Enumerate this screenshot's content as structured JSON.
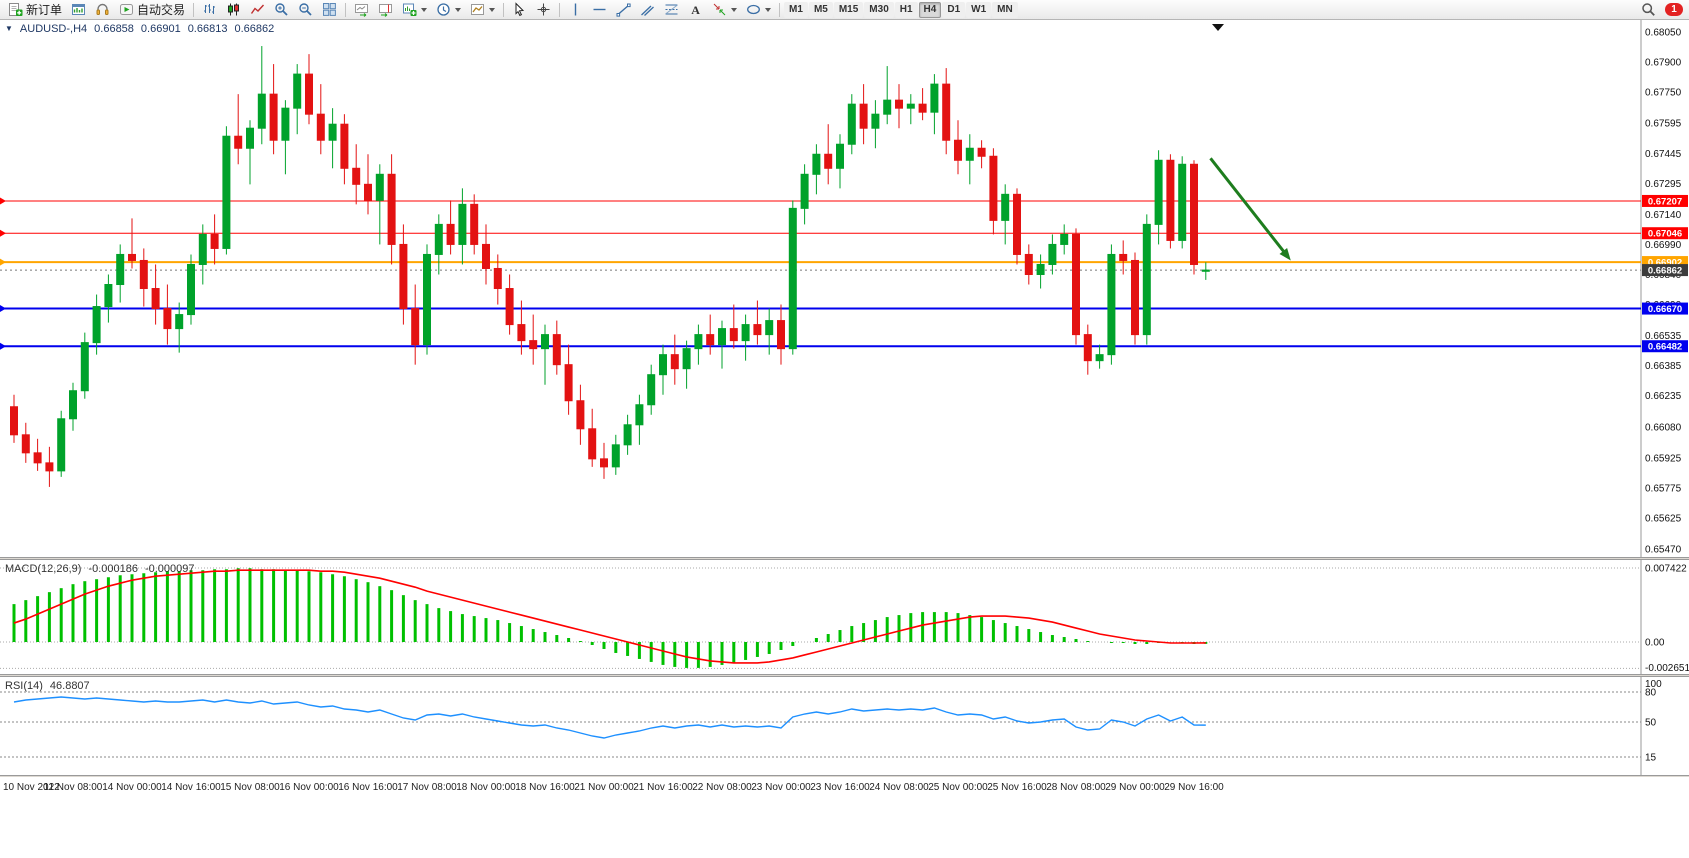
{
  "toolbar": {
    "new_order_label": "新订单",
    "auto_trading_label": "自动交易",
    "timeframes": [
      "M1",
      "M5",
      "M15",
      "M30",
      "H1",
      "H4",
      "D1",
      "W1",
      "MN"
    ],
    "active_timeframe": "H4",
    "notification_count": "1"
  },
  "chart_header": {
    "expand_icon": "▼",
    "symbol": "AUDUSD-,H4",
    "open": "0.66858",
    "high": "0.66901",
    "low": "0.66813",
    "close": "0.66862"
  },
  "macd_header": {
    "label": "MACD(12,26,9)",
    "macd_value": "-0.000186",
    "signal_value": "-0.000097"
  },
  "rsi_header": {
    "label": "RSI(14)",
    "value": "46.8807"
  },
  "chart_data": {
    "type": "candlestick",
    "symbol": "AUDUSD",
    "timeframe": "H4",
    "price_axis": {
      "min": 0.6547,
      "max": 0.6805,
      "ticks": [
        "0.68050",
        "0.67900",
        "0.67750",
        "0.67595",
        "0.67445",
        "0.67295",
        "0.67140",
        "0.66990",
        "0.66840",
        "0.66690",
        "0.66535",
        "0.66385",
        "0.66235",
        "0.66080",
        "0.65925",
        "0.65775",
        "0.65625",
        "0.65470"
      ]
    },
    "time_labels": [
      "10 Nov 2022",
      "11 Nov 08:00",
      "14 Nov 00:00",
      "14 Nov 16:00",
      "15 Nov 08:00",
      "16 Nov 00:00",
      "16 Nov 16:00",
      "17 Nov 08:00",
      "18 Nov 00:00",
      "18 Nov 16:00",
      "21 Nov 00:00",
      "21 Nov 16:00",
      "22 Nov 08:00",
      "23 Nov 00:00",
      "23 Nov 16:00",
      "24 Nov 08:00",
      "25 Nov 00:00",
      "25 Nov 16:00",
      "28 Nov 08:00",
      "29 Nov 00:00",
      "29 Nov 16:00"
    ],
    "colors": {
      "up": "#00a22b",
      "down": "#e31212",
      "macd_hist": "#00c000",
      "macd_signal": "#ff0000",
      "rsi": "#1e90ff",
      "current_line": "#777777"
    },
    "hlines": [
      {
        "price": 0.67207,
        "label": "0.67207",
        "color": "#ff0000",
        "width": 1
      },
      {
        "price": 0.67046,
        "label": "0.67046",
        "color": "#ff0000",
        "width": 1
      },
      {
        "price": 0.66902,
        "label": "0.66902",
        "color": "#ffa500",
        "width": 2
      },
      {
        "price": 0.6667,
        "label": "0.66670",
        "color": "#0000ee",
        "width": 2
      },
      {
        "price": 0.66482,
        "label": "0.66482",
        "color": "#0000ee",
        "width": 2
      }
    ],
    "current_price": {
      "price": 0.66862,
      "label": "0.66862",
      "badge_color": "#3c3c3c"
    },
    "arrow": {
      "from_bar": 101.4,
      "from_price": 0.6742,
      "to_bar": 108.2,
      "to_price": 0.6691,
      "color": "#1e7d1e"
    },
    "candles": [
      [
        0.6618,
        0.6624,
        0.66,
        0.6604
      ],
      [
        0.6604,
        0.661,
        0.659,
        0.6595
      ],
      [
        0.6595,
        0.6602,
        0.6586,
        0.659
      ],
      [
        0.659,
        0.6598,
        0.6578,
        0.6586
      ],
      [
        0.6586,
        0.6616,
        0.6583,
        0.6612
      ],
      [
        0.6612,
        0.663,
        0.6606,
        0.6626
      ],
      [
        0.6626,
        0.6655,
        0.6622,
        0.665
      ],
      [
        0.665,
        0.6674,
        0.6644,
        0.6668
      ],
      [
        0.6668,
        0.6684,
        0.666,
        0.6679
      ],
      [
        0.6679,
        0.6699,
        0.667,
        0.6694
      ],
      [
        0.6694,
        0.6712,
        0.6687,
        0.6691
      ],
      [
        0.6691,
        0.6697,
        0.6668,
        0.6677
      ],
      [
        0.6677,
        0.6689,
        0.6659,
        0.6667
      ],
      [
        0.6667,
        0.6679,
        0.6649,
        0.6657
      ],
      [
        0.6657,
        0.667,
        0.6645,
        0.6664
      ],
      [
        0.6664,
        0.6694,
        0.6659,
        0.6689
      ],
      [
        0.6689,
        0.6709,
        0.6679,
        0.6704
      ],
      [
        0.6704,
        0.6714,
        0.6689,
        0.6697
      ],
      [
        0.6697,
        0.6758,
        0.6694,
        0.6753
      ],
      [
        0.6753,
        0.6774,
        0.6739,
        0.6747
      ],
      [
        0.6747,
        0.6761,
        0.6729,
        0.6757
      ],
      [
        0.6757,
        0.6798,
        0.6749,
        0.6774
      ],
      [
        0.6774,
        0.6789,
        0.6744,
        0.6751
      ],
      [
        0.6751,
        0.6771,
        0.6734,
        0.6767
      ],
      [
        0.6767,
        0.6789,
        0.6754,
        0.6784
      ],
      [
        0.6784,
        0.6794,
        0.6759,
        0.6764
      ],
      [
        0.6764,
        0.6779,
        0.6744,
        0.6751
      ],
      [
        0.6751,
        0.6767,
        0.6737,
        0.6759
      ],
      [
        0.6759,
        0.6764,
        0.6729,
        0.6737
      ],
      [
        0.6737,
        0.6749,
        0.6719,
        0.6729
      ],
      [
        0.6729,
        0.6744,
        0.6714,
        0.6721
      ],
      [
        0.6721,
        0.6739,
        0.6699,
        0.6734
      ],
      [
        0.6734,
        0.6744,
        0.6689,
        0.6699
      ],
      [
        0.6699,
        0.6709,
        0.6659,
        0.6667
      ],
      [
        0.6667,
        0.6679,
        0.6639,
        0.6649
      ],
      [
        0.6649,
        0.6699,
        0.6644,
        0.6694
      ],
      [
        0.6694,
        0.6714,
        0.6684,
        0.6709
      ],
      [
        0.6709,
        0.6721,
        0.6694,
        0.6699
      ],
      [
        0.6699,
        0.6727,
        0.6689,
        0.6719
      ],
      [
        0.6719,
        0.6724,
        0.6694,
        0.6699
      ],
      [
        0.6699,
        0.6709,
        0.6679,
        0.6687
      ],
      [
        0.6687,
        0.6694,
        0.6669,
        0.6677
      ],
      [
        0.6677,
        0.6684,
        0.6654,
        0.6659
      ],
      [
        0.6659,
        0.6671,
        0.6644,
        0.6651
      ],
      [
        0.6651,
        0.6664,
        0.6639,
        0.6647
      ],
      [
        0.6647,
        0.6659,
        0.6629,
        0.6654
      ],
      [
        0.6654,
        0.6661,
        0.6634,
        0.6639
      ],
      [
        0.6639,
        0.6649,
        0.6614,
        0.6621
      ],
      [
        0.6621,
        0.6629,
        0.6599,
        0.6607
      ],
      [
        0.6607,
        0.6617,
        0.6588,
        0.6592
      ],
      [
        0.6592,
        0.66,
        0.6582,
        0.6588
      ],
      [
        0.6588,
        0.6604,
        0.6584,
        0.6599
      ],
      [
        0.6599,
        0.6614,
        0.6594,
        0.6609
      ],
      [
        0.6609,
        0.6624,
        0.6599,
        0.6619
      ],
      [
        0.6619,
        0.6639,
        0.6614,
        0.6634
      ],
      [
        0.6634,
        0.6649,
        0.6624,
        0.6644
      ],
      [
        0.6644,
        0.6654,
        0.6629,
        0.6637
      ],
      [
        0.6637,
        0.6651,
        0.6627,
        0.6647
      ],
      [
        0.6647,
        0.6659,
        0.6639,
        0.6654
      ],
      [
        0.6654,
        0.6664,
        0.6644,
        0.6649
      ],
      [
        0.6649,
        0.6661,
        0.6637,
        0.6657
      ],
      [
        0.6657,
        0.6669,
        0.6647,
        0.6651
      ],
      [
        0.6651,
        0.6664,
        0.6641,
        0.6659
      ],
      [
        0.6659,
        0.6671,
        0.6649,
        0.6654
      ],
      [
        0.6654,
        0.6667,
        0.6644,
        0.6661
      ],
      [
        0.6661,
        0.6669,
        0.6639,
        0.6647
      ],
      [
        0.6647,
        0.6721,
        0.6644,
        0.6717
      ],
      [
        0.6717,
        0.6739,
        0.6709,
        0.6734
      ],
      [
        0.6734,
        0.6749,
        0.6724,
        0.6744
      ],
      [
        0.6744,
        0.6759,
        0.6729,
        0.6737
      ],
      [
        0.6737,
        0.6754,
        0.6727,
        0.6749
      ],
      [
        0.6749,
        0.6774,
        0.6744,
        0.6769
      ],
      [
        0.6769,
        0.6779,
        0.6749,
        0.6757
      ],
      [
        0.6757,
        0.6771,
        0.6747,
        0.6764
      ],
      [
        0.6764,
        0.6788,
        0.6759,
        0.6771
      ],
      [
        0.6771,
        0.6779,
        0.6757,
        0.6767
      ],
      [
        0.6767,
        0.6774,
        0.6759,
        0.6769
      ],
      [
        0.6769,
        0.6777,
        0.6761,
        0.6765
      ],
      [
        0.6765,
        0.6784,
        0.6754,
        0.6779
      ],
      [
        0.6779,
        0.6787,
        0.6744,
        0.6751
      ],
      [
        0.6751,
        0.6761,
        0.6734,
        0.6741
      ],
      [
        0.6741,
        0.6754,
        0.6729,
        0.6747
      ],
      [
        0.6747,
        0.6751,
        0.6737,
        0.6743
      ],
      [
        0.6743,
        0.6747,
        0.6704,
        0.6711
      ],
      [
        0.6711,
        0.6729,
        0.6699,
        0.6724
      ],
      [
        0.6724,
        0.6727,
        0.6689,
        0.6694
      ],
      [
        0.6694,
        0.6699,
        0.6679,
        0.6684
      ],
      [
        0.6684,
        0.6694,
        0.6677,
        0.6689
      ],
      [
        0.6689,
        0.6704,
        0.6684,
        0.6699
      ],
      [
        0.6699,
        0.6709,
        0.6694,
        0.6704
      ],
      [
        0.6704,
        0.6707,
        0.6649,
        0.6654
      ],
      [
        0.6654,
        0.6659,
        0.6634,
        0.6641
      ],
      [
        0.6641,
        0.6649,
        0.6637,
        0.6644
      ],
      [
        0.6644,
        0.6699,
        0.6639,
        0.6694
      ],
      [
        0.6694,
        0.6701,
        0.6684,
        0.6691
      ],
      [
        0.6691,
        0.6695,
        0.6649,
        0.6654
      ],
      [
        0.6654,
        0.6714,
        0.6649,
        0.6709
      ],
      [
        0.6709,
        0.6746,
        0.6699,
        0.6741
      ],
      [
        0.6741,
        0.6744,
        0.6697,
        0.6701
      ],
      [
        0.6701,
        0.6743,
        0.6697,
        0.6739
      ],
      [
        0.6739,
        0.6741,
        0.6684,
        0.6689
      ],
      [
        0.66858,
        0.66901,
        0.66813,
        0.66862
      ]
    ],
    "macd": {
      "unit": 0.0001,
      "ticks": [
        "0.007422",
        "0.00",
        "-0.002651"
      ],
      "tick_values": [
        0.007422,
        0,
        -0.002651
      ],
      "histogram": [
        38,
        42,
        46,
        50,
        54,
        58,
        61,
        63,
        65,
        67,
        68,
        69,
        70,
        71,
        71,
        72,
        72,
        73,
        73,
        74,
        74,
        73,
        73,
        72,
        72,
        71,
        70,
        68,
        66,
        63,
        60,
        56,
        52,
        47,
        42,
        38,
        34,
        31,
        28,
        26,
        24,
        22,
        19,
        16,
        13,
        10,
        7,
        4,
        1,
        -3,
        -7,
        -11,
        -14,
        -17,
        -20,
        -23,
        -25,
        -26,
        -26,
        -25,
        -23,
        -21,
        -18,
        -15,
        -12,
        -8,
        -4,
        0,
        4,
        8,
        12,
        16,
        19,
        22,
        25,
        27,
        29,
        30,
        30,
        30,
        29,
        27,
        25,
        22,
        19,
        16,
        13,
        10,
        7,
        5,
        3,
        1,
        0,
        -1,
        -1,
        -2,
        -2,
        -1,
        0,
        -1,
        -2,
        -1.86
      ],
      "signal": [
        19,
        23,
        28,
        33,
        38,
        43,
        48,
        52,
        56,
        59,
        62,
        64,
        66,
        67,
        68,
        69,
        70,
        71,
        71,
        72,
        72,
        72,
        72,
        72,
        72,
        72,
        71,
        71,
        70,
        68,
        66,
        64,
        61,
        58,
        55,
        51,
        48,
        45,
        42,
        39,
        36,
        33,
        30,
        27,
        24,
        21,
        18,
        15,
        12,
        9,
        6,
        3,
        0,
        -3,
        -6,
        -9,
        -12,
        -15,
        -17,
        -19,
        -20,
        -21,
        -21,
        -21,
        -20,
        -18,
        -16,
        -13,
        -10,
        -7,
        -4,
        -1,
        2,
        5,
        8,
        11,
        14,
        17,
        19,
        21,
        23,
        25,
        26,
        26,
        26,
        25,
        24,
        22,
        20,
        17,
        14,
        11,
        8,
        6,
        4,
        2,
        1,
        0,
        -1,
        -1,
        -1,
        -0.97
      ]
    },
    "rsi": {
      "ticks": [
        "100",
        "80",
        "50",
        "15"
      ],
      "levels": [
        80,
        50,
        15
      ],
      "values": [
        70,
        72,
        73,
        74,
        75,
        74,
        73,
        74,
        73,
        72,
        71,
        70,
        71,
        70,
        70,
        71,
        72,
        70,
        72,
        70,
        69,
        71,
        68,
        69,
        70,
        67,
        65,
        66,
        63,
        62,
        60,
        62,
        58,
        54,
        52,
        57,
        58,
        56,
        58,
        55,
        53,
        51,
        49,
        47,
        46,
        47,
        44,
        42,
        39,
        36,
        34,
        37,
        39,
        41,
        44,
        46,
        44,
        46,
        47,
        45,
        47,
        45,
        46,
        45,
        46,
        44,
        55,
        58,
        60,
        58,
        60,
        63,
        61,
        62,
        63,
        62,
        63,
        62,
        64,
        60,
        57,
        58,
        57,
        53,
        55,
        51,
        49,
        50,
        52,
        53,
        45,
        42,
        43,
        52,
        50,
        46,
        53,
        57,
        51,
        55,
        47,
        46.88
      ]
    }
  }
}
